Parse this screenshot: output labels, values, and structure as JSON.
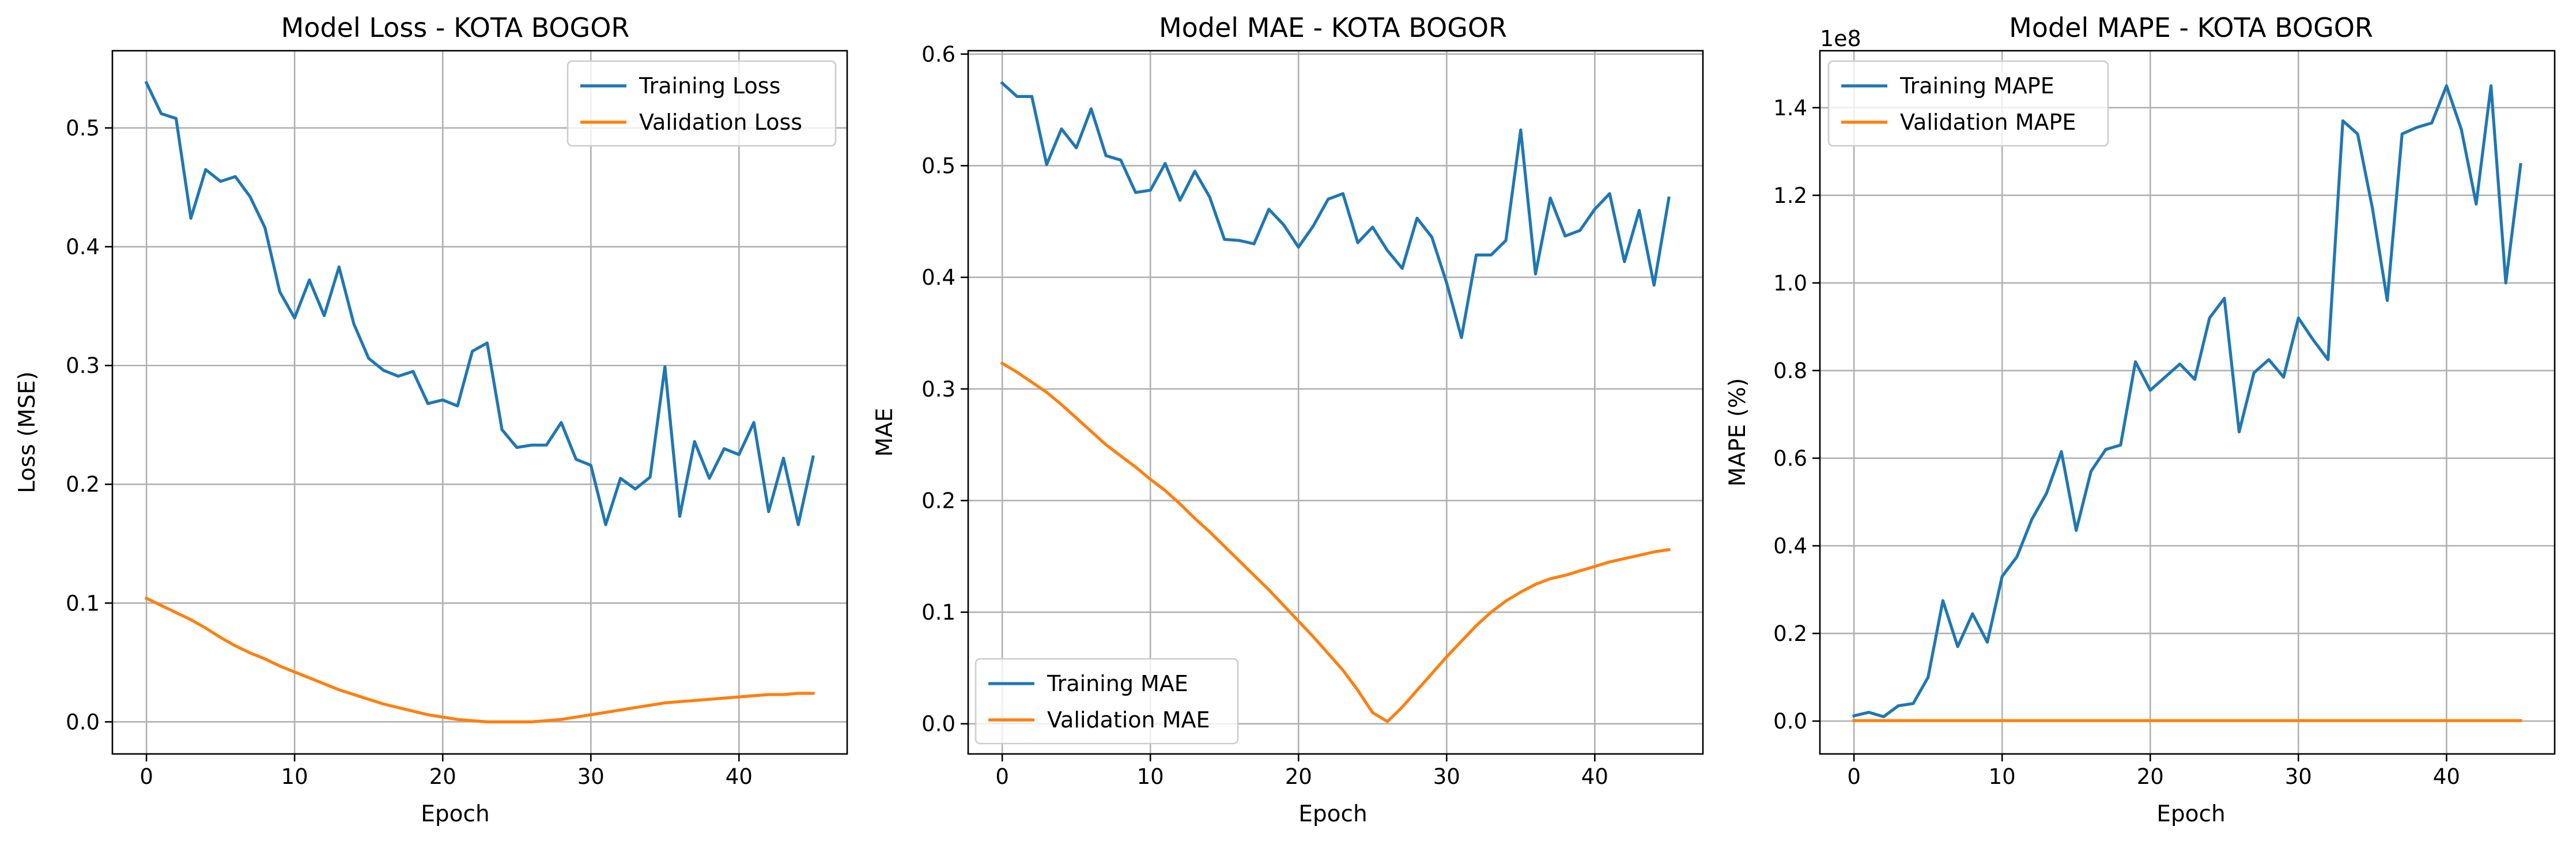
{
  "figure": {
    "background": "#ffffff"
  },
  "colors": {
    "training": "#1f77b4",
    "validation": "#ff7f0e",
    "grid": "#b0b0b0"
  },
  "chart_data": [
    {
      "type": "line",
      "title": "Model Loss - KOTA BOGOR",
      "xlabel": "Epoch",
      "ylabel": "Loss (MSE)",
      "xlim": [
        -2.3,
        47.3
      ],
      "ylim": [
        -0.027,
        0.565
      ],
      "xticks": [
        0,
        10,
        20,
        30,
        40
      ],
      "yticks": [
        0.0,
        0.1,
        0.2,
        0.3,
        0.4,
        0.5
      ],
      "ytick_labels": [
        "0.0",
        "0.1",
        "0.2",
        "0.3",
        "0.4",
        "0.5"
      ],
      "y_offset_label": "",
      "grid": true,
      "legend": "top-right",
      "series": [
        {
          "name": "Training Loss",
          "color": "#1f77b4",
          "y": [
            0.538,
            0.512,
            0.508,
            0.424,
            0.465,
            0.455,
            0.459,
            0.442,
            0.416,
            0.362,
            0.34,
            0.372,
            0.342,
            0.383,
            0.335,
            0.306,
            0.296,
            0.291,
            0.295,
            0.268,
            0.271,
            0.266,
            0.312,
            0.319,
            0.246,
            0.231,
            0.233,
            0.233,
            0.252,
            0.221,
            0.216,
            0.166,
            0.205,
            0.196,
            0.206,
            0.299,
            0.173,
            0.236,
            0.205,
            0.23,
            0.225,
            0.252,
            0.177,
            0.222,
            0.166,
            0.223
          ]
        },
        {
          "name": "Validation Loss",
          "color": "#ff7f0e",
          "y": [
            0.104,
            0.098,
            0.092,
            0.086,
            0.079,
            0.071,
            0.064,
            0.058,
            0.053,
            0.047,
            0.042,
            0.037,
            0.032,
            0.027,
            0.023,
            0.019,
            0.015,
            0.012,
            0.009,
            0.006,
            0.004,
            0.002,
            0.001,
            0.0,
            0.0,
            0.0,
            0.0,
            0.001,
            0.002,
            0.004,
            0.006,
            0.008,
            0.01,
            0.012,
            0.014,
            0.016,
            0.017,
            0.018,
            0.019,
            0.02,
            0.021,
            0.022,
            0.023,
            0.023,
            0.024,
            0.024
          ]
        }
      ]
    },
    {
      "type": "line",
      "title": "Model MAE - KOTA BOGOR",
      "xlabel": "Epoch",
      "ylabel": "MAE",
      "xlim": [
        -2.3,
        47.3
      ],
      "ylim": [
        -0.027,
        0.603
      ],
      "xticks": [
        0,
        10,
        20,
        30,
        40
      ],
      "yticks": [
        0.0,
        0.1,
        0.2,
        0.3,
        0.4,
        0.5,
        0.6
      ],
      "ytick_labels": [
        "0.0",
        "0.1",
        "0.2",
        "0.3",
        "0.4",
        "0.5",
        "0.6"
      ],
      "y_offset_label": "",
      "grid": true,
      "legend": "bottom-left",
      "series": [
        {
          "name": "Training MAE",
          "color": "#1f77b4",
          "y": [
            0.574,
            0.562,
            0.562,
            0.501,
            0.533,
            0.516,
            0.551,
            0.509,
            0.505,
            0.476,
            0.478,
            0.502,
            0.469,
            0.495,
            0.472,
            0.434,
            0.433,
            0.43,
            0.461,
            0.447,
            0.427,
            0.446,
            0.47,
            0.475,
            0.431,
            0.445,
            0.424,
            0.408,
            0.453,
            0.436,
            0.395,
            0.346,
            0.42,
            0.42,
            0.433,
            0.532,
            0.403,
            0.471,
            0.437,
            0.442,
            0.461,
            0.475,
            0.414,
            0.46,
            0.393,
            0.471
          ]
        },
        {
          "name": "Validation MAE",
          "color": "#ff7f0e",
          "y": [
            0.323,
            0.315,
            0.306,
            0.297,
            0.286,
            0.274,
            0.262,
            0.25,
            0.24,
            0.23,
            0.219,
            0.209,
            0.197,
            0.184,
            0.172,
            0.159,
            0.146,
            0.133,
            0.12,
            0.106,
            0.092,
            0.078,
            0.063,
            0.048,
            0.03,
            0.01,
            0.002,
            0.015,
            0.03,
            0.045,
            0.06,
            0.074,
            0.088,
            0.1,
            0.11,
            0.118,
            0.125,
            0.13,
            0.133,
            0.137,
            0.141,
            0.145,
            0.148,
            0.151,
            0.154,
            0.156
          ]
        }
      ]
    },
    {
      "type": "line",
      "title": "Model MAPE - KOTA BOGOR",
      "xlabel": "Epoch",
      "ylabel": "MAPE (%)",
      "xlim": [
        -2.3,
        47.3
      ],
      "ylim": [
        -0.075,
        1.53
      ],
      "xticks": [
        0,
        10,
        20,
        30,
        40
      ],
      "yticks": [
        0.0,
        0.2,
        0.4,
        0.6,
        0.8,
        1.0,
        1.2,
        1.4
      ],
      "ytick_labels": [
        "0.0",
        "0.2",
        "0.4",
        "0.6",
        "0.8",
        "1.0",
        "1.2",
        "1.4"
      ],
      "y_offset_label": "1e8",
      "grid": true,
      "legend": "top-left",
      "series": [
        {
          "name": "Training MAPE",
          "color": "#1f77b4",
          "y": [
            0.012,
            0.02,
            0.01,
            0.035,
            0.04,
            0.1,
            0.275,
            0.17,
            0.245,
            0.18,
            0.33,
            0.375,
            0.46,
            0.52,
            0.615,
            0.435,
            0.57,
            0.62,
            0.63,
            0.82,
            0.755,
            0.785,
            0.815,
            0.78,
            0.92,
            0.965,
            0.66,
            0.795,
            0.825,
            0.785,
            0.92,
            0.87,
            0.825,
            1.37,
            1.34,
            1.17,
            0.96,
            1.34,
            1.355,
            1.365,
            1.45,
            1.35,
            1.18,
            1.45,
            1.0,
            1.27
          ]
        },
        {
          "name": "Validation MAPE",
          "color": "#ff7f0e",
          "y": [
            0.001,
            0.001,
            0.001,
            0.001,
            0.001,
            0.001,
            0.001,
            0.001,
            0.001,
            0.001,
            0.001,
            0.001,
            0.001,
            0.001,
            0.001,
            0.001,
            0.001,
            0.001,
            0.001,
            0.001,
            0.001,
            0.001,
            0.001,
            0.001,
            0.001,
            0.001,
            0.001,
            0.001,
            0.001,
            0.001,
            0.001,
            0.001,
            0.001,
            0.001,
            0.001,
            0.001,
            0.001,
            0.001,
            0.001,
            0.001,
            0.001,
            0.001,
            0.001,
            0.001,
            0.001,
            0.001
          ]
        }
      ]
    }
  ]
}
